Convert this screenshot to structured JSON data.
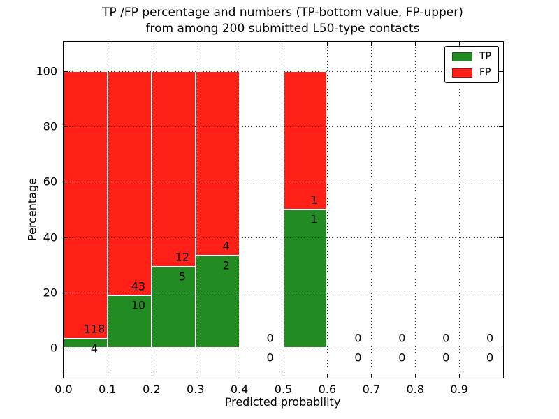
{
  "chart_data": {
    "type": "bar",
    "stacked": true,
    "units": "percent",
    "title": "TP /FP percentage and numbers (TP-bottom value, FP-upper) from among 200 submitted L50-type contacts",
    "title_lines": [
      "TP /FP percentage and numbers (TP-bottom value, FP-upper)",
      "from among 200 submitted L50-type contacts"
    ],
    "xlabel": "Predicted probability",
    "ylabel": "Percentage",
    "xlim": [
      0.0,
      1.0
    ],
    "ylim": [
      -10.8,
      110.6
    ],
    "xtick_vals": [
      0.0,
      0.1,
      0.2,
      0.3,
      0.4,
      0.5,
      0.6,
      0.7,
      0.8,
      0.9
    ],
    "xtick_labels": [
      "0.0",
      "0.1",
      "0.2",
      "0.3",
      "0.4",
      "0.5",
      "0.6",
      "0.7",
      "0.8",
      "0.9"
    ],
    "ytick_vals": [
      0,
      20,
      40,
      60,
      80,
      100
    ],
    "ytick_labels": [
      "0",
      "20",
      "40",
      "60",
      "80",
      "100"
    ],
    "grid": true,
    "legend_position": "upper right",
    "total_contacts": 200,
    "bin_edges": [
      0.0,
      0.1,
      0.2,
      0.3,
      0.4,
      0.5,
      0.6,
      0.7,
      0.8,
      0.9,
      1.0
    ],
    "series": [
      {
        "name": "TP",
        "color": "#228b22",
        "counts": [
          4,
          10,
          5,
          2,
          0,
          1,
          0,
          0,
          0,
          0
        ]
      },
      {
        "name": "FP",
        "color": "#ff2018",
        "counts": [
          118,
          43,
          12,
          4,
          0,
          1,
          0,
          0,
          0,
          0
        ]
      }
    ],
    "label_x_offset": 0.07,
    "label_dy": 3.5
  }
}
